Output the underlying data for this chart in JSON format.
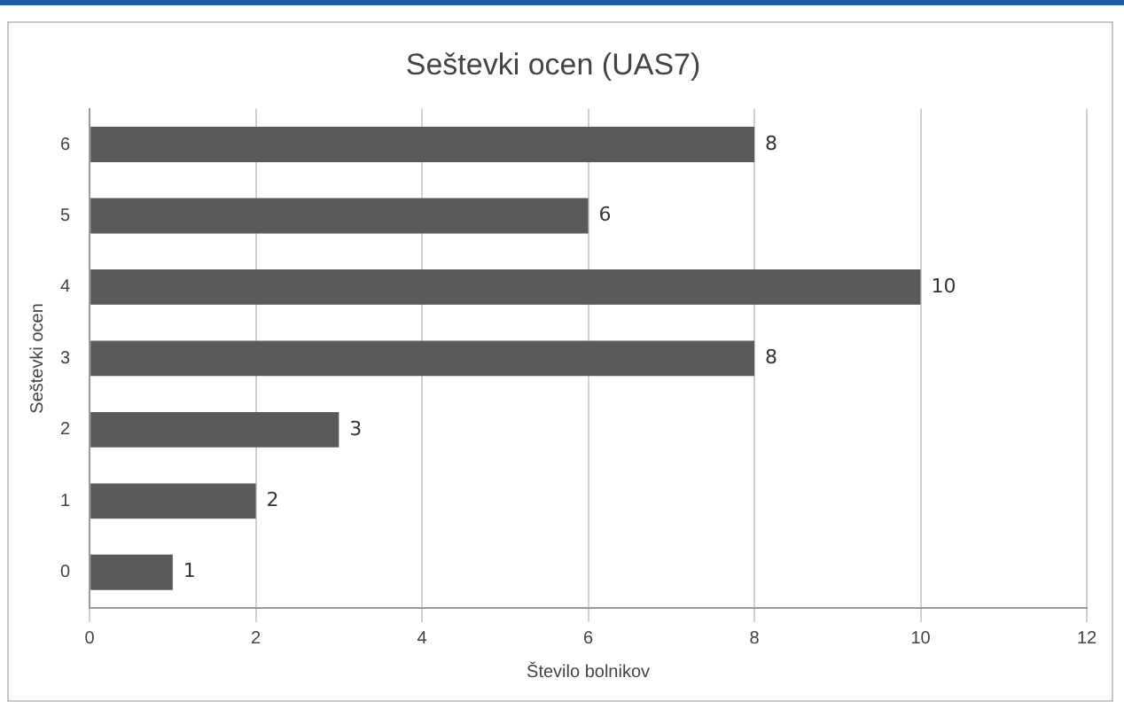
{
  "chart_data": {
    "type": "bar",
    "orientation": "horizontal",
    "title": "Seštevki ocen (UAS7)",
    "xlabel": "Število bolnikov",
    "ylabel": "Seštevki ocen",
    "categories": [
      "6",
      "5",
      "4",
      "3",
      "2",
      "1",
      "0"
    ],
    "values": [
      8,
      6,
      10,
      8,
      3,
      2,
      1
    ],
    "color": "#5a5a5a",
    "xlim": [
      0,
      12
    ],
    "xticks": [
      0,
      2,
      4,
      6,
      8,
      10,
      12
    ],
    "grid": "x",
    "data_labels": true,
    "legend": false
  }
}
